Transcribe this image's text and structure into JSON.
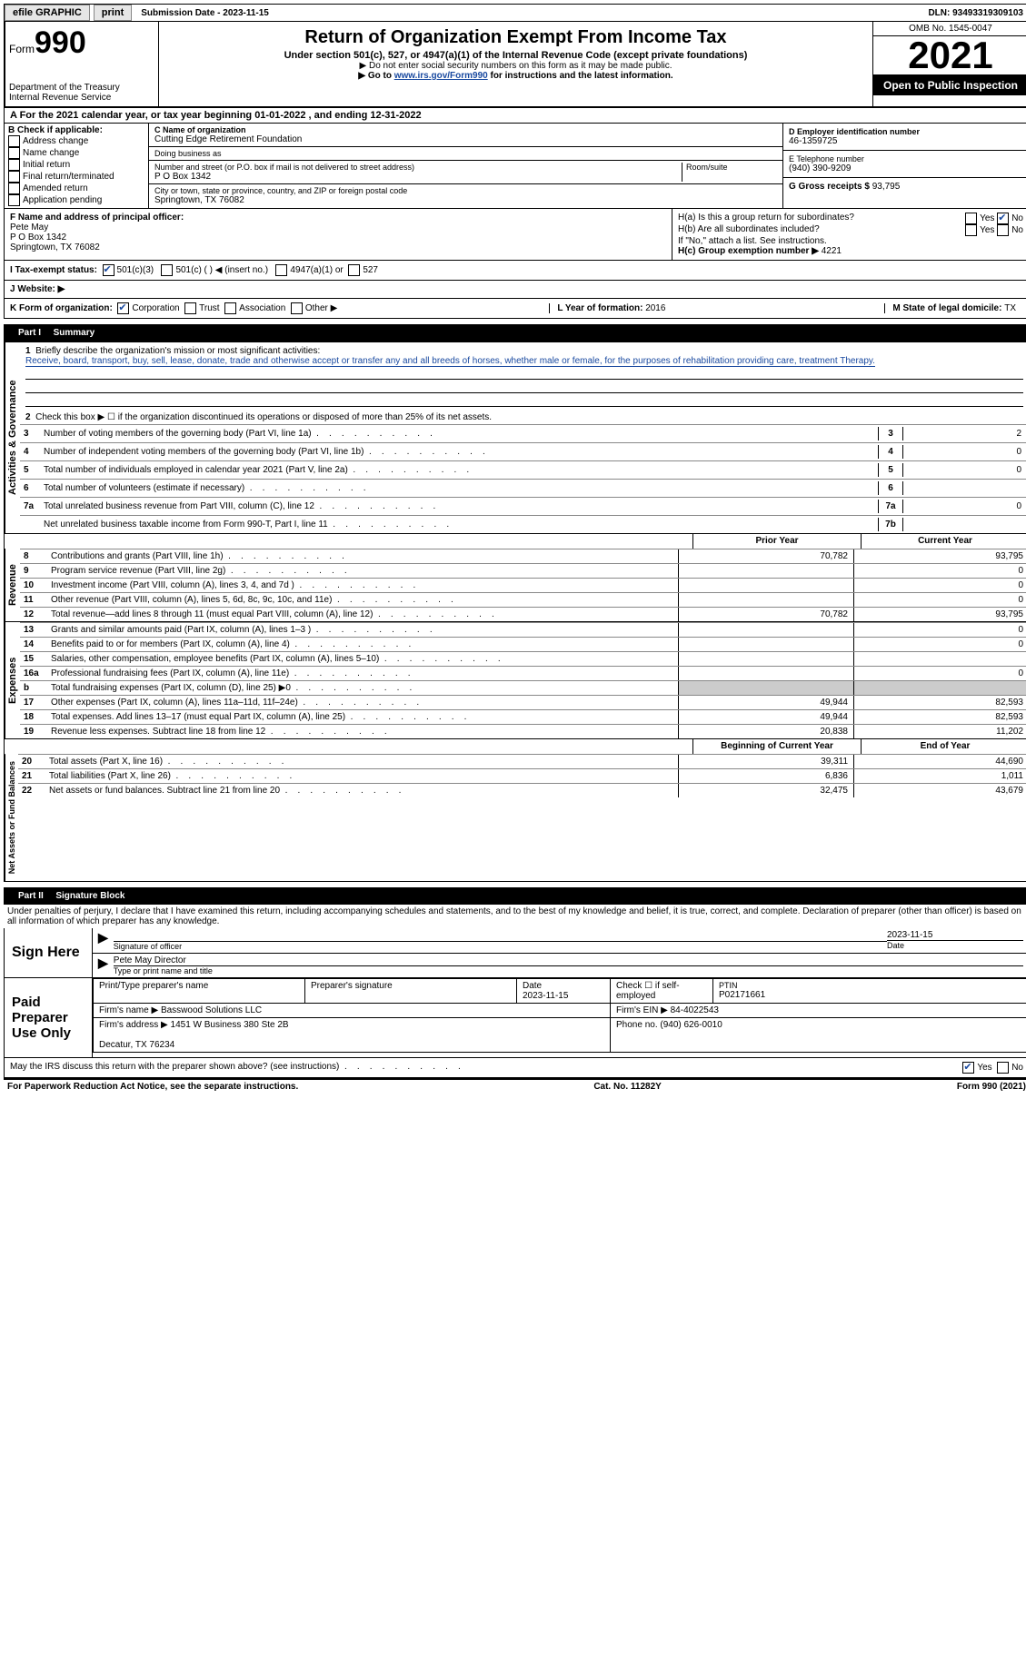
{
  "topbar": {
    "efile": "efile GRAPHIC",
    "print": "print",
    "sub_label": "Submission Date - ",
    "sub_date": "2023-11-15",
    "dln_label": "DLN: ",
    "dln": "93493319309103"
  },
  "header": {
    "form_label": "Form",
    "form_num": "990",
    "dept": "Department of the Treasury\nInternal Revenue Service",
    "title": "Return of Organization Exempt From Income Tax",
    "sub": "Under section 501(c), 527, or 4947(a)(1) of the Internal Revenue Code (except private foundations)",
    "note1": "▶ Do not enter social security numbers on this form as it may be made public.",
    "note2_pre": "▶ Go to ",
    "note2_link": "www.irs.gov/Form990",
    "note2_post": " for instructions and the latest information.",
    "omb": "OMB No. 1545-0047",
    "year": "2021",
    "open": "Open to Public Inspection"
  },
  "row_a": "A  For the 2021 calendar year, or tax year beginning 01-01-2022    , and ending 12-31-2022",
  "section_b": {
    "label": "B Check if applicable:",
    "items": [
      "Address change",
      "Name change",
      "Initial return",
      "Final return/terminated",
      "Amended return",
      "Application pending"
    ]
  },
  "section_c": {
    "name_label": "C Name of organization",
    "name": "Cutting Edge Retirement Foundation",
    "dba_label": "Doing business as",
    "dba": "",
    "addr_label": "Number and street (or P.O. box if mail is not delivered to street address)",
    "room_label": "Room/suite",
    "addr": "P O Box 1342",
    "city_label": "City or town, state or province, country, and ZIP or foreign postal code",
    "city": "Springtown, TX  76082"
  },
  "section_d": {
    "ein_label": "D Employer identification number",
    "ein": "46-1359725",
    "tel_label": "E Telephone number",
    "tel": "(940) 390-9209",
    "gross_label": "G Gross receipts $ ",
    "gross": "93,795"
  },
  "section_f": {
    "label": "F  Name and address of principal officer:",
    "name": "Pete May",
    "addr1": "P O Box 1342",
    "addr2": "Springtown, TX  76082"
  },
  "section_h": {
    "ha": "H(a)  Is this a group return for subordinates?",
    "hb": "H(b)  Are all subordinates included?",
    "hb_note": "If \"No,\" attach a list. See instructions.",
    "hc": "H(c)  Group exemption number ▶",
    "hc_val": "4221",
    "yes": "Yes",
    "no": "No"
  },
  "status": {
    "label": "I   Tax-exempt status:",
    "c3": "501(c)(3)",
    "c_other": "501(c) (  ) ◀ (insert no.)",
    "a1": "4947(a)(1) or",
    "s527": "527"
  },
  "website": {
    "label": "J   Website: ▶",
    "value": ""
  },
  "korg": {
    "label": "K Form of organization:",
    "corp": "Corporation",
    "trust": "Trust",
    "assoc": "Association",
    "other": "Other ▶",
    "l_label": "L Year of formation: ",
    "l_val": "2016",
    "m_label": "M State of legal domicile: ",
    "m_val": "TX"
  },
  "part1": {
    "title": "Part I",
    "name": "Summary",
    "tab_activities": "Activities & Governance",
    "tab_revenue": "Revenue",
    "tab_expenses": "Expenses",
    "tab_netassets": "Net Assets or Fund Balances",
    "l1_pre": "Briefly describe the organization's mission or most significant activities:",
    "l1_text": "Receive, board, transport, buy, sell, lease, donate, trade and otherwise accept or transfer any and all breeds of horses, whether male or female, for the purposes of rehabilitation providing care, treatment Therapy.",
    "l2": "Check this box ▶ ☐ if the organization discontinued its operations or disposed of more than 25% of its net assets.",
    "lines_gov": [
      {
        "n": "3",
        "d": "Number of voting members of the governing body (Part VI, line 1a)",
        "box": "3",
        "v": "2"
      },
      {
        "n": "4",
        "d": "Number of independent voting members of the governing body (Part VI, line 1b)",
        "box": "4",
        "v": "0"
      },
      {
        "n": "5",
        "d": "Total number of individuals employed in calendar year 2021 (Part V, line 2a)",
        "box": "5",
        "v": "0"
      },
      {
        "n": "6",
        "d": "Total number of volunteers (estimate if necessary)",
        "box": "6",
        "v": ""
      },
      {
        "n": "7a",
        "d": "Total unrelated business revenue from Part VIII, column (C), line 12",
        "box": "7a",
        "v": "0"
      },
      {
        "n": "",
        "d": "Net unrelated business taxable income from Form 990-T, Part I, line 11",
        "box": "7b",
        "v": ""
      }
    ],
    "prior": "Prior Year",
    "current": "Current Year",
    "lines_rev": [
      {
        "n": "8",
        "d": "Contributions and grants (Part VIII, line 1h)",
        "p": "70,782",
        "c": "93,795"
      },
      {
        "n": "9",
        "d": "Program service revenue (Part VIII, line 2g)",
        "p": "",
        "c": "0"
      },
      {
        "n": "10",
        "d": "Investment income (Part VIII, column (A), lines 3, 4, and 7d )",
        "p": "",
        "c": "0"
      },
      {
        "n": "11",
        "d": "Other revenue (Part VIII, column (A), lines 5, 6d, 8c, 9c, 10c, and 11e)",
        "p": "",
        "c": "0"
      },
      {
        "n": "12",
        "d": "Total revenue—add lines 8 through 11 (must equal Part VIII, column (A), line 12)",
        "p": "70,782",
        "c": "93,795"
      }
    ],
    "lines_exp": [
      {
        "n": "13",
        "d": "Grants and similar amounts paid (Part IX, column (A), lines 1–3 )",
        "p": "",
        "c": "0"
      },
      {
        "n": "14",
        "d": "Benefits paid to or for members (Part IX, column (A), line 4)",
        "p": "",
        "c": "0"
      },
      {
        "n": "15",
        "d": "Salaries, other compensation, employee benefits (Part IX, column (A), lines 5–10)",
        "p": "",
        "c": ""
      },
      {
        "n": "16a",
        "d": "Professional fundraising fees (Part IX, column (A), line 11e)",
        "p": "",
        "c": "0"
      },
      {
        "n": "b",
        "d": "Total fundraising expenses (Part IX, column (D), line 25) ▶0",
        "p": "grey",
        "c": "grey"
      },
      {
        "n": "17",
        "d": "Other expenses (Part IX, column (A), lines 11a–11d, 11f–24e)",
        "p": "49,944",
        "c": "82,593"
      },
      {
        "n": "18",
        "d": "Total expenses. Add lines 13–17 (must equal Part IX, column (A), line 25)",
        "p": "49,944",
        "c": "82,593"
      },
      {
        "n": "19",
        "d": "Revenue less expenses. Subtract line 18 from line 12",
        "p": "20,838",
        "c": "11,202"
      }
    ],
    "begin": "Beginning of Current Year",
    "end": "End of Year",
    "lines_net": [
      {
        "n": "20",
        "d": "Total assets (Part X, line 16)",
        "p": "39,311",
        "c": "44,690"
      },
      {
        "n": "21",
        "d": "Total liabilities (Part X, line 26)",
        "p": "6,836",
        "c": "1,011"
      },
      {
        "n": "22",
        "d": "Net assets or fund balances. Subtract line 21 from line 20",
        "p": "32,475",
        "c": "43,679"
      }
    ]
  },
  "part2": {
    "title": "Part II",
    "name": "Signature Block",
    "penalty": "Under penalties of perjury, I declare that I have examined this return, including accompanying schedules and statements, and to the best of my knowledge and belief, it is true, correct, and complete. Declaration of preparer (other than officer) is based on all information of which preparer has any knowledge.",
    "sign_here": "Sign Here",
    "sig_officer": "Signature of officer",
    "sig_date": "2023-11-15",
    "date_lbl": "Date",
    "officer_name": "Pete May  Director",
    "type_name": "Type or print name and title",
    "paid_prep": "Paid Preparer Use Only",
    "pt_name": "Print/Type preparer's name",
    "prep_sig": "Preparer's signature",
    "date2": "Date\n2023-11-15",
    "check_self": "Check ☐ if self-employed",
    "ptin_lbl": "PTIN",
    "ptin": "P02171661",
    "firm_name_lbl": "Firm's name    ▶ ",
    "firm_name": "Basswood Solutions LLC",
    "firm_ein_lbl": "Firm's EIN ▶ ",
    "firm_ein": "84-4022543",
    "firm_addr_lbl": "Firm's address ▶ ",
    "firm_addr": "1451 W Business 380 Ste 2B\n\nDecatur, TX  76234",
    "phone_lbl": "Phone no. ",
    "phone": "(940) 626-0010",
    "discuss": "May the IRS discuss this return with the preparer shown above? (see instructions)",
    "yes": "Yes",
    "no": "No"
  },
  "footer": {
    "left": "For Paperwork Reduction Act Notice, see the separate instructions.",
    "center": "Cat. No. 11282Y",
    "right": "Form 990 (2021)"
  }
}
